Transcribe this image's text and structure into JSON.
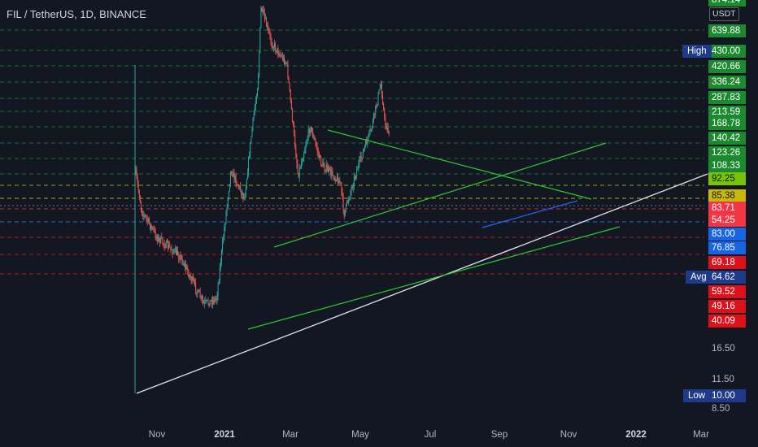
{
  "header": {
    "symbol_title": "FIL / TetherUS, 1D, BINANCE"
  },
  "price_scale": {
    "unit_badge": "USDT",
    "top_partial": "874.14",
    "levels": [
      {
        "label": "639.88",
        "color": "#1b8a2e"
      },
      {
        "label": "430.00",
        "color": "#1b8a2e"
      },
      {
        "label": "420.66",
        "color": "#1b8a2e"
      },
      {
        "label": "336.24",
        "color": "#1b8a2e"
      },
      {
        "label": "287.83",
        "color": "#1b8a2e"
      },
      {
        "label": "213.59",
        "color": "#1b8a2e"
      },
      {
        "label": "168.78",
        "color": "#1b8a2e"
      },
      {
        "label": "140.42",
        "color": "#1b8a2e"
      },
      {
        "label": "123.26",
        "color": "#1b8a2e"
      },
      {
        "label": "108.33",
        "color": "#1b8a2e"
      },
      {
        "label": "92.25",
        "color": "#76c40a"
      },
      {
        "label": "85.38",
        "color": "#c9b80a"
      },
      {
        "label": "83.71",
        "color": "#f23645"
      },
      {
        "label": "54.25",
        "color": "#f23645"
      },
      {
        "label": "83.00",
        "color": "#1565e5"
      },
      {
        "label": "76.85",
        "color": "#1565e5"
      },
      {
        "label": "69.18",
        "color": "#e0101a"
      },
      {
        "label": "64.62",
        "color": "#1e3a8a"
      },
      {
        "label": "59.52",
        "color": "#e0101a"
      },
      {
        "label": "49.16",
        "color": "#e0101a"
      },
      {
        "label": "40.09",
        "color": "#e0101a"
      },
      {
        "label": "10.00",
        "color": "#1e3a8a"
      }
    ],
    "plain_ticks": [
      "16.50",
      "11.50",
      "8.50"
    ],
    "side_labels": {
      "high": "High",
      "avg": "Avg",
      "low": "Low"
    }
  },
  "time_axis": {
    "labels": [
      "Nov",
      "2021",
      "Mar",
      "May",
      "Jul",
      "Sep",
      "Nov",
      "2022",
      "Mar"
    ]
  },
  "chart_data": {
    "type": "candlestick",
    "title": "FIL / TetherUS, 1D, BINANCE",
    "symbol": "FIL/USDT",
    "exchange": "BINANCE",
    "interval": "1D",
    "quote_currency": "USDT",
    "x_tick_labels": [
      "Nov",
      "2021",
      "Mar",
      "May",
      "Jul",
      "Sep",
      "Nov",
      "2022",
      "Mar"
    ],
    "y_scale": "log",
    "series": [
      {
        "name": "FIL / TetherUS",
        "type": "candlestick",
        "approx_path": [
          {
            "date": "2020-10-16",
            "close": 10.0
          },
          {
            "date": "2020-10-17",
            "close": 61.0
          },
          {
            "date": "2020-10-25",
            "close": 45.0
          },
          {
            "date": "2020-11-15",
            "close": 36.0
          },
          {
            "date": "2020-12-15",
            "close": 31.0
          },
          {
            "date": "2021-01-15",
            "close": 21.0
          },
          {
            "date": "2021-02-01",
            "close": 22.0
          },
          {
            "date": "2021-02-20",
            "close": 63.0
          },
          {
            "date": "2021-03-10",
            "close": 50.0
          },
          {
            "date": "2021-03-20",
            "close": 88.0
          },
          {
            "date": "2021-03-28",
            "close": 130.0
          },
          {
            "date": "2021-04-01",
            "close": 237.0
          },
          {
            "date": "2021-04-15",
            "close": 178.0
          },
          {
            "date": "2021-05-05",
            "close": 150.0
          },
          {
            "date": "2021-05-15",
            "close": 82.0
          },
          {
            "date": "2021-05-20",
            "close": 60.0
          },
          {
            "date": "2021-06-05",
            "close": 90.0
          },
          {
            "date": "2021-06-20",
            "close": 66.0
          },
          {
            "date": "2021-07-15",
            "close": 57.0
          },
          {
            "date": "2021-07-20",
            "close": 44.0
          },
          {
            "date": "2021-08-05",
            "close": 62.0
          },
          {
            "date": "2021-08-25",
            "close": 88.0
          },
          {
            "date": "2021-09-07",
            "close": 128.0
          },
          {
            "date": "2021-09-12",
            "close": 92.0
          },
          {
            "date": "2021-09-18",
            "close": 85.38
          }
        ]
      }
    ]
  }
}
